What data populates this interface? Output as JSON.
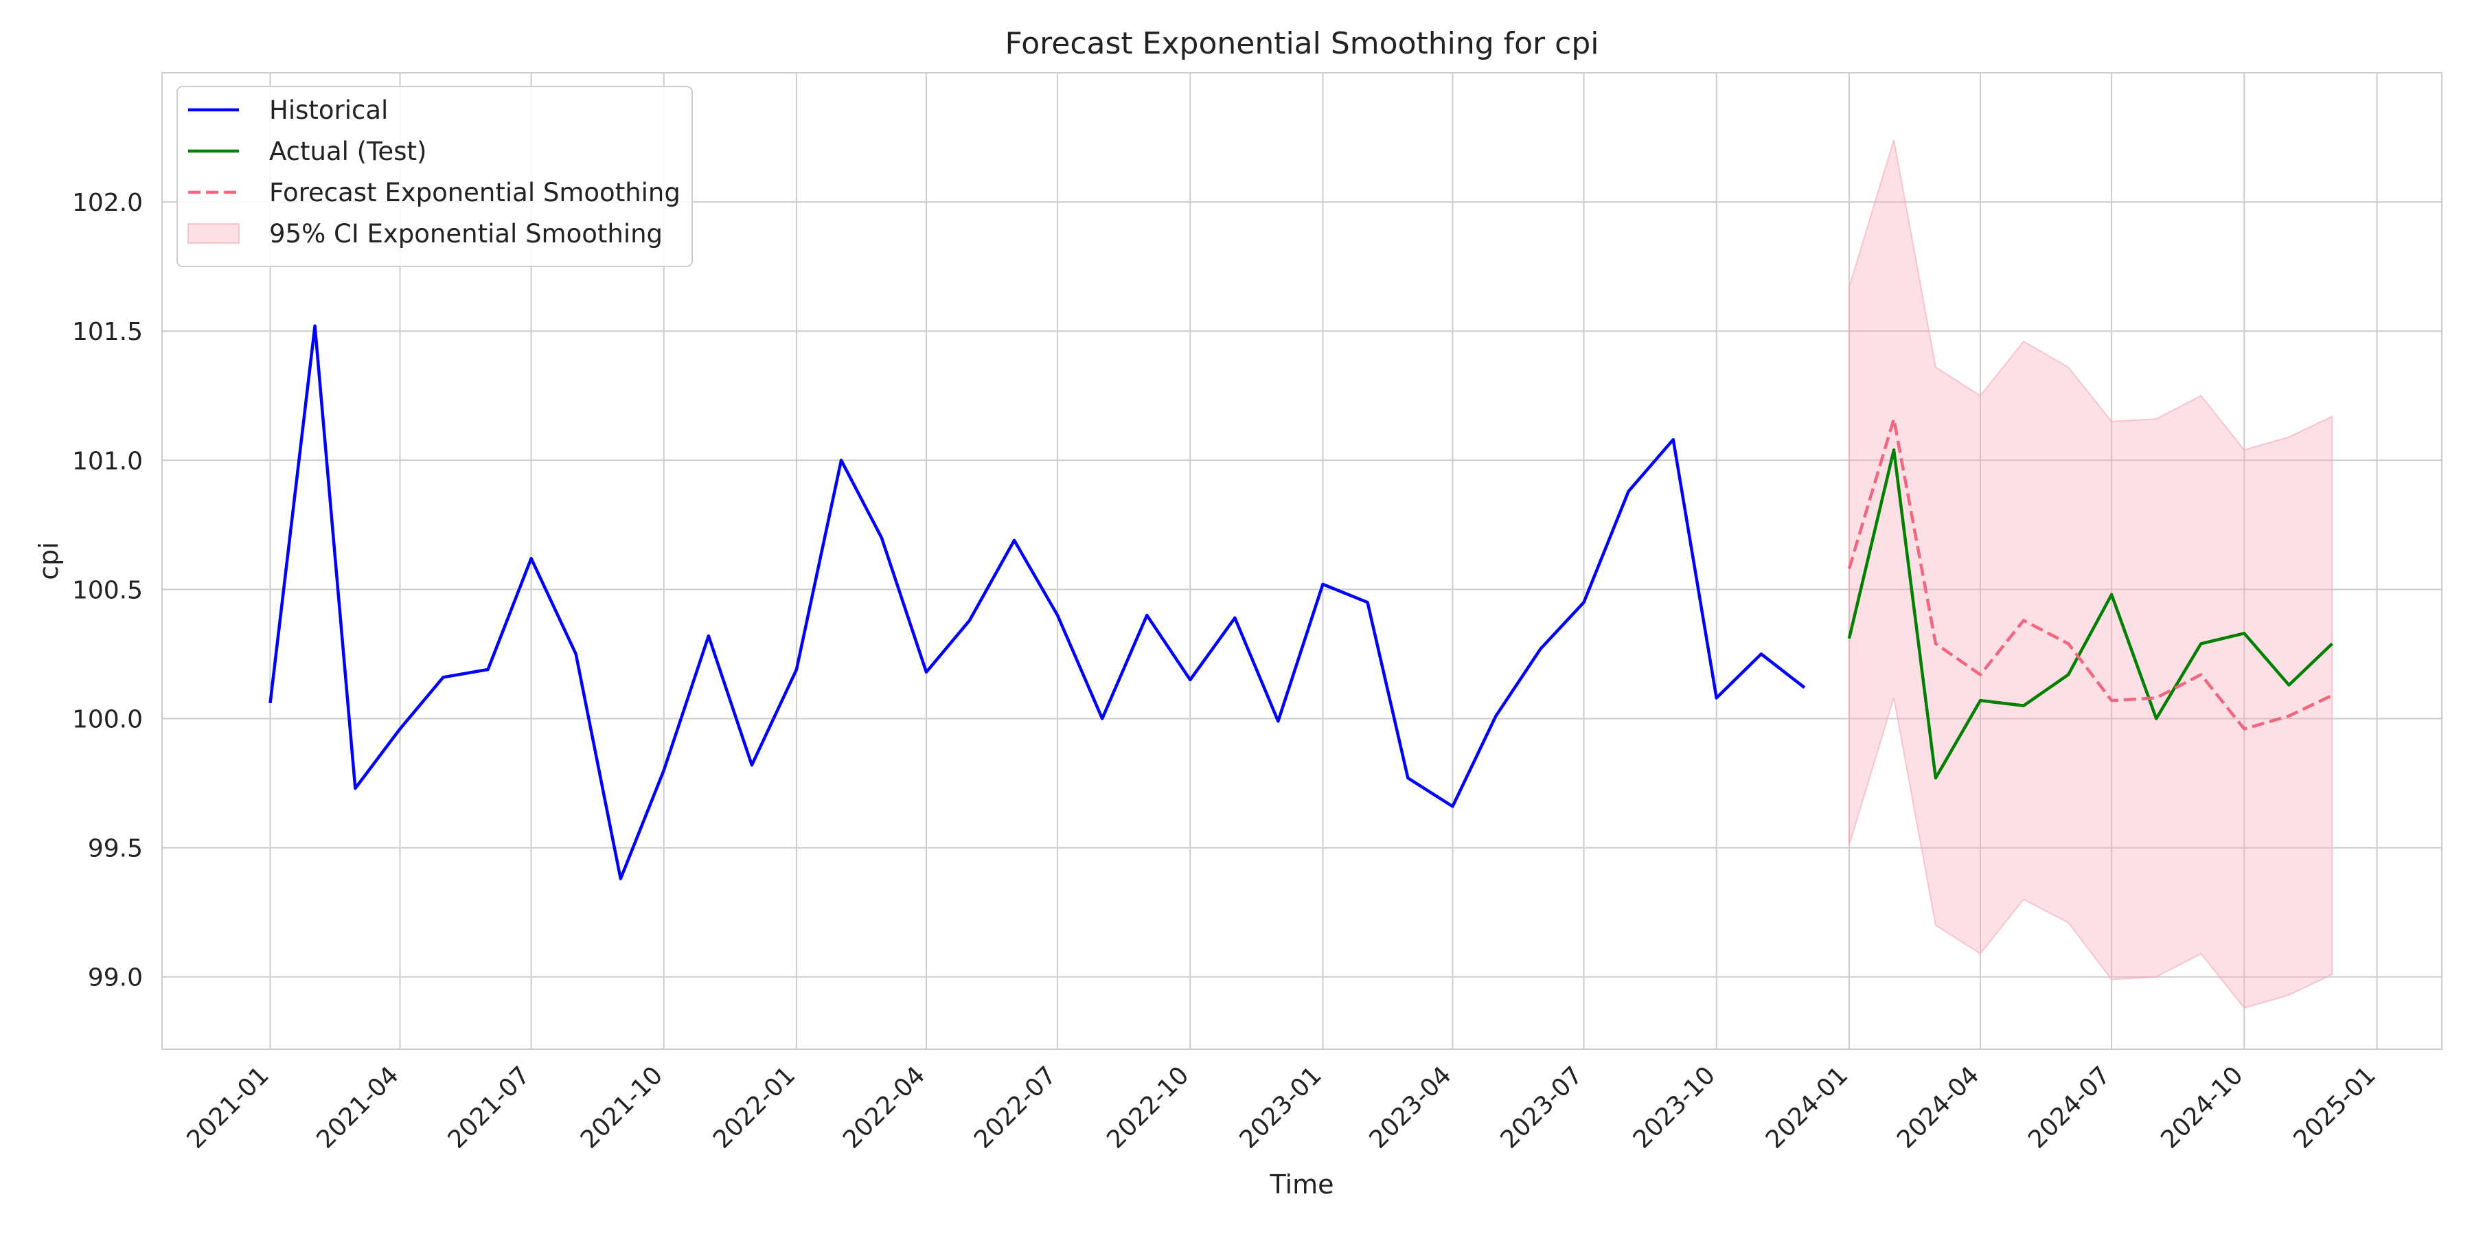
{
  "chart_data": {
    "type": "line",
    "title": "Forecast Exponential Smoothing for cpi",
    "xlabel": "Time",
    "ylabel": "cpi",
    "grid": true,
    "legend_position": "top-left",
    "xlim": [
      "2020-10-18",
      "2025-02-15"
    ],
    "ylim": [
      98.72,
      102.5
    ],
    "x_ticks": [
      "2021-01",
      "2021-04",
      "2021-07",
      "2021-10",
      "2022-01",
      "2022-04",
      "2022-07",
      "2022-10",
      "2023-01",
      "2023-04",
      "2023-07",
      "2023-10",
      "2024-01",
      "2024-04",
      "2024-07",
      "2024-10",
      "2025-01"
    ],
    "y_ticks": [
      99.0,
      99.5,
      100.0,
      100.5,
      101.0,
      101.5,
      102.0
    ],
    "series": [
      {
        "name": "Historical",
        "style": "solid",
        "color": "#0000ff",
        "x": [
          "2021-01",
          "2021-02",
          "2021-03",
          "2021-04",
          "2021-05",
          "2021-06",
          "2021-07",
          "2021-08",
          "2021-09",
          "2021-10",
          "2021-11",
          "2021-12",
          "2022-01",
          "2022-02",
          "2022-03",
          "2022-04",
          "2022-05",
          "2022-06",
          "2022-07",
          "2022-08",
          "2022-09",
          "2022-10",
          "2022-11",
          "2022-12",
          "2023-01",
          "2023-02",
          "2023-03",
          "2023-04",
          "2023-05",
          "2023-06",
          "2023-07",
          "2023-08",
          "2023-09",
          "2023-10",
          "2023-11",
          "2023-12"
        ],
        "y": [
          100.06,
          101.52,
          99.73,
          99.96,
          100.16,
          100.19,
          100.62,
          100.25,
          99.38,
          99.8,
          100.32,
          99.82,
          100.19,
          101.0,
          100.7,
          100.18,
          100.38,
          100.69,
          100.4,
          100.0,
          100.4,
          100.15,
          100.39,
          99.99,
          100.52,
          100.45,
          99.77,
          99.66,
          100.01,
          100.27,
          100.45,
          100.88,
          101.08,
          100.08,
          100.25,
          100.12
        ]
      },
      {
        "name": "Actual (Test)",
        "style": "solid",
        "color": "#008000",
        "x": [
          "2024-01",
          "2024-02",
          "2024-03",
          "2024-04",
          "2024-05",
          "2024-06",
          "2024-07",
          "2024-08",
          "2024-09",
          "2024-10",
          "2024-11",
          "2024-12"
        ],
        "y": [
          100.31,
          101.04,
          99.77,
          100.07,
          100.05,
          100.17,
          100.48,
          100.0,
          100.29,
          100.33,
          100.13,
          100.29
        ]
      },
      {
        "name": "Forecast Exponential Smoothing",
        "style": "dashed",
        "color": "#f0677f",
        "x": [
          "2024-01",
          "2024-02",
          "2024-03",
          "2024-04",
          "2024-05",
          "2024-06",
          "2024-07",
          "2024-08",
          "2024-09",
          "2024-10",
          "2024-11",
          "2024-12"
        ],
        "y": [
          100.58,
          101.16,
          100.29,
          100.17,
          100.38,
          100.29,
          100.07,
          100.08,
          100.17,
          99.96,
          100.01,
          100.09
        ]
      }
    ],
    "bands": [
      {
        "name": "95% CI Exponential Smoothing",
        "color": "#f7a7b8",
        "x": [
          "2024-01",
          "2024-02",
          "2024-03",
          "2024-04",
          "2024-05",
          "2024-06",
          "2024-07",
          "2024-08",
          "2024-09",
          "2024-10",
          "2024-11",
          "2024-12"
        ],
        "lower": [
          99.51,
          100.08,
          99.2,
          99.09,
          99.3,
          99.21,
          98.99,
          99.0,
          99.09,
          98.88,
          98.93,
          99.01
        ],
        "upper": [
          101.67,
          102.24,
          101.36,
          101.25,
          101.46,
          101.36,
          101.15,
          101.16,
          101.25,
          101.04,
          101.09,
          101.17
        ]
      }
    ]
  }
}
